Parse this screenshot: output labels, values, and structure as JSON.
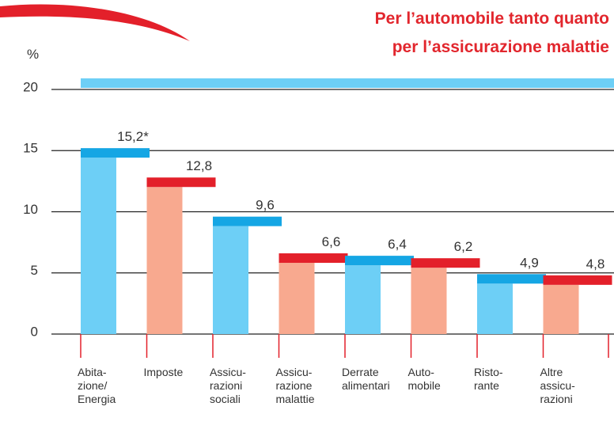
{
  "chart_data": {
    "type": "bar",
    "title": [
      "Per l’automobile tanto quanto",
      "per l’assicurazione malattie"
    ],
    "y_label": "%",
    "categories": [
      [
        "Abita-",
        "zione/",
        "Energia"
      ],
      [
        "Imposte"
      ],
      [
        "Assicu-",
        "razioni",
        "sociali"
      ],
      [
        "Assicu-",
        "razione",
        "malattie"
      ],
      [
        "Derrate",
        "alimentari"
      ],
      [
        "Auto-",
        "mobile"
      ],
      [
        "Risto-",
        "rante"
      ],
      [
        "Altre",
        "assicu-",
        "razioni"
      ]
    ],
    "values": [
      15.2,
      12.8,
      9.6,
      6.6,
      6.4,
      6.2,
      4.9,
      4.8
    ],
    "value_labels": [
      "15,2*",
      "12,8",
      "9,6",
      "6,6",
      "6,4",
      "6,2",
      "4,9",
      "4,8"
    ],
    "colors": [
      "#6dcff6",
      "#f8a98f",
      "#6dcff6",
      "#f8a98f",
      "#6dcff6",
      "#f8a98f",
      "#6dcff6",
      "#f8a98f"
    ],
    "cap_colors": [
      "#15a6e4",
      "#e3202a",
      "#15a6e4",
      "#e3202a",
      "#15a6e4",
      "#e3202a",
      "#15a6e4",
      "#e3202a"
    ],
    "ylim": [
      0,
      20
    ],
    "yticks": [
      0,
      5,
      10,
      15,
      20
    ],
    "grid": true
  }
}
